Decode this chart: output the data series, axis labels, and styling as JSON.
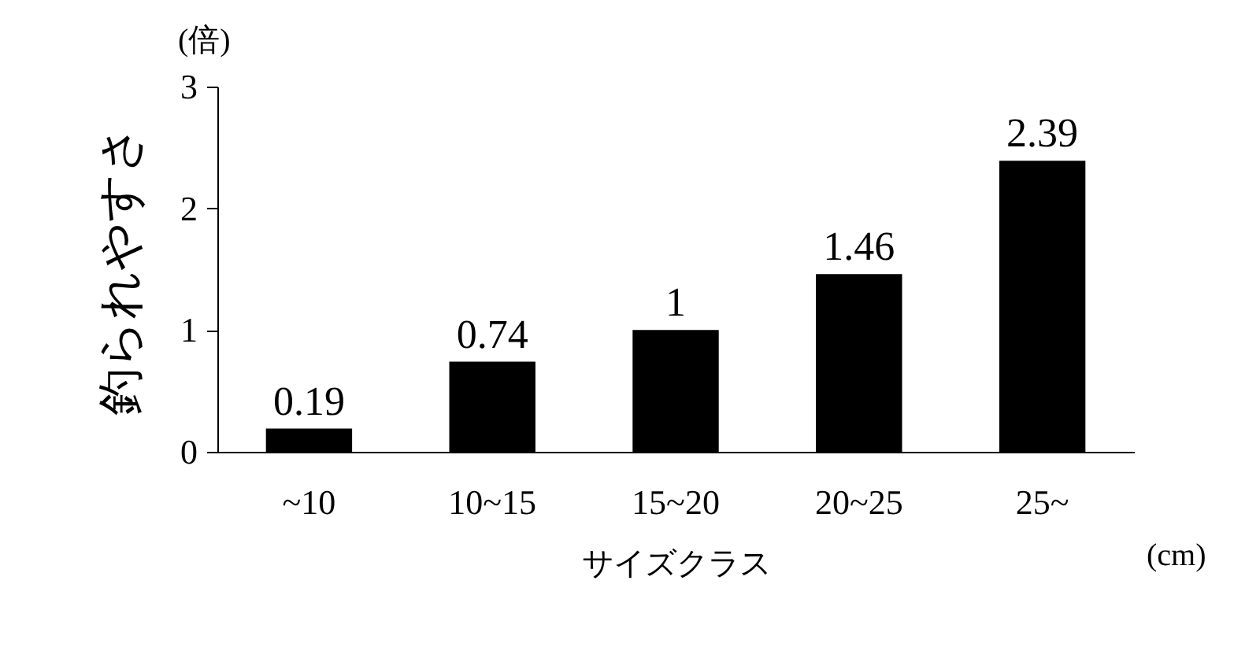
{
  "chart_data": {
    "type": "bar",
    "xlabel": "サイズクラス",
    "ylabel": "釣られやすさ",
    "annotations": [
      "(倍)",
      "(cm)"
    ],
    "categories": [
      "~10",
      "10~15",
      "15~20",
      "20~25",
      "25~"
    ],
    "values": [
      0.19,
      0.74,
      1,
      1.46,
      2.39
    ],
    "color": "#000000",
    "ylim": [
      0,
      3
    ],
    "yticks": [
      0,
      1,
      2,
      3
    ],
    "grid": false,
    "data_labels": true
  }
}
